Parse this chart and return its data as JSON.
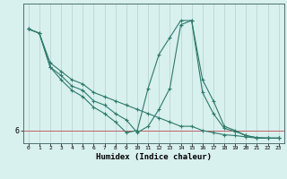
{
  "background_color": "#d8f0ee",
  "grid_color": "#b8d8d4",
  "line_color": "#2e7a6a",
  "xlabel": "Humidex (Indice chaleur)",
  "ytick_label": "6",
  "x_values": [
    0,
    1,
    2,
    3,
    4,
    5,
    6,
    7,
    8,
    9,
    10,
    11,
    12,
    13,
    14,
    15,
    16,
    17,
    18,
    19,
    20,
    21,
    22,
    23
  ],
  "series1": [
    8.4,
    8.3,
    7.6,
    7.4,
    7.2,
    7.1,
    6.9,
    6.8,
    6.7,
    6.6,
    6.5,
    6.4,
    6.3,
    6.2,
    6.1,
    6.1,
    6.0,
    5.95,
    5.9,
    5.88,
    5.85,
    5.82,
    5.82,
    5.82
  ],
  "series2": [
    8.4,
    8.3,
    7.5,
    7.2,
    6.95,
    6.8,
    6.55,
    6.4,
    6.2,
    5.95,
    6.0,
    7.0,
    7.8,
    8.2,
    8.6,
    8.6,
    7.2,
    6.7,
    6.1,
    6.0,
    5.88,
    5.83,
    5.82,
    5.82
  ],
  "series3": [
    8.4,
    8.3,
    7.5,
    7.3,
    7.05,
    6.95,
    6.7,
    6.6,
    6.4,
    6.25,
    5.95,
    6.1,
    6.5,
    7.0,
    8.5,
    8.6,
    6.9,
    6.4,
    6.05,
    5.98,
    5.88,
    5.83,
    5.82,
    5.82
  ],
  "ymin": 5.7,
  "ymax": 9.0,
  "xmin": -0.5,
  "xmax": 23.5,
  "hline_y": 6.0,
  "hline_color": "#c06060",
  "figwidth": 3.2,
  "figheight": 2.0,
  "dpi": 100
}
